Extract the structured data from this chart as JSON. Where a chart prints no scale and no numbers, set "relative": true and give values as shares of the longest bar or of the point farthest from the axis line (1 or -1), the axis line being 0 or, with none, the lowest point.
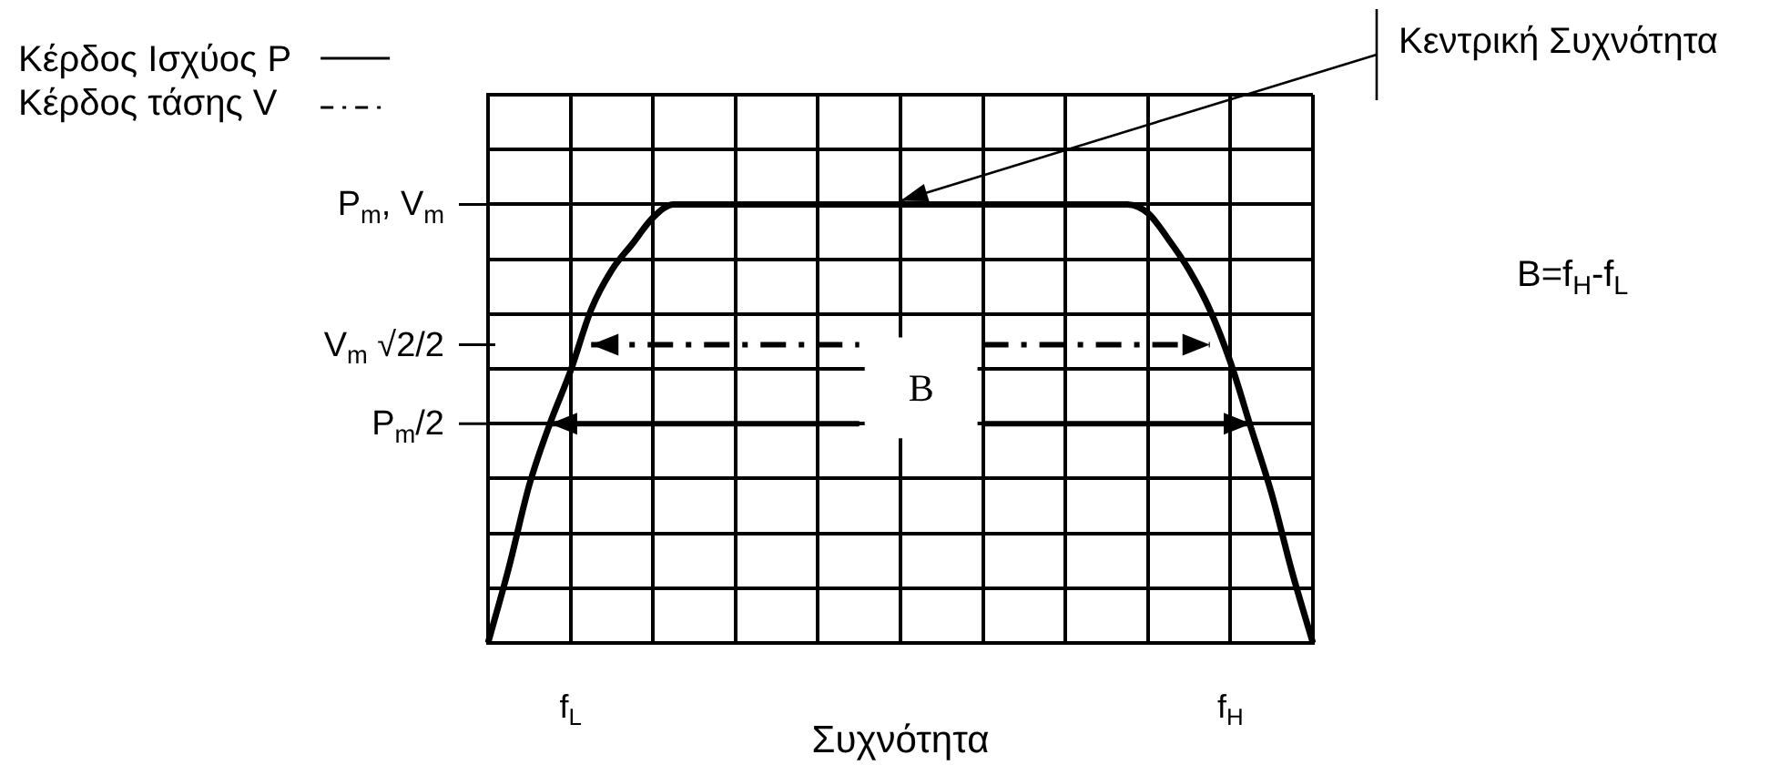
{
  "chart_data": {
    "type": "line",
    "relative": true,
    "categories": [
      null,
      null,
      null,
      null,
      "f$_{L}$",
      null,
      null,
      null,
      null,
      null,
      null,
      null,
      null,
      null,
      null,
      null,
      null,
      null,
      null,
      null,
      null,
      null,
      null,
      null,
      null,
      null,
      null,
      null,
      null,
      null,
      null,
      null,
      null,
      null,
      null,
      null,
      "f$_{H}$",
      null,
      null,
      null,
      null
    ],
    "series": [
      {
        "color": "#000000",
        "line_style": "solid",
        "values": [
          0,
          0.17,
          0.36,
          0.5,
          0.62,
          0.76,
          0.85,
          0.91,
          0.97,
          1,
          1,
          1,
          1,
          1,
          1,
          1,
          1,
          1,
          1,
          1,
          1,
          1,
          1,
          1,
          1,
          1,
          1,
          1,
          1,
          1,
          1,
          1,
          0.98,
          0.92,
          0.85,
          0.76,
          0.64,
          0.49,
          0.34,
          0.16,
          0
        ]
      },
      {
        "name": "Κέρδος Ισχύος P",
        "color": "#000000",
        "line_style": "solid",
        "values": [
          null,
          null,
          null,
          0.5,
          0.5,
          0.5,
          0.5,
          0.5,
          0.5,
          0.5,
          0.5,
          0.5,
          0.5,
          0.5,
          0.5,
          0.5,
          0.5,
          0.5,
          0.5,
          null,
          null,
          null,
          null,
          null,
          0.5,
          0.5,
          0.5,
          0.5,
          0.5,
          0.5,
          0.5,
          0.5,
          0.5,
          0.5,
          0.5,
          0.5,
          0.5,
          0.5,
          null,
          null,
          null
        ]
      },
      {
        "name": "Κέρδος τάσης V",
        "color": "#000000",
        "line_style": "dashed",
        "values": [
          null,
          null,
          null,
          null,
          null,
          0.68,
          0.68,
          0.68,
          0.68,
          0.68,
          0.68,
          0.68,
          0.68,
          0.68,
          0.68,
          0.68,
          0.68,
          0.68,
          0.68,
          null,
          null,
          null,
          null,
          null,
          0.68,
          0.68,
          0.68,
          0.68,
          0.68,
          0.68,
          0.68,
          0.68,
          0.68,
          0.68,
          0.68,
          0.68,
          null,
          null,
          null,
          null,
          null
        ]
      }
    ],
    "xlabel": "Συχνότητα",
    "grid": true,
    "legend": "top left",
    "annotations": [
      "P$_{m}$, V$_{m}$",
      "V$_{m}$ √2/2",
      "P$_{m}$/2",
      "B",
      "Κεντρική Συχνότητα",
      "B=f$_{H}$-f$_{L}$"
    ]
  }
}
